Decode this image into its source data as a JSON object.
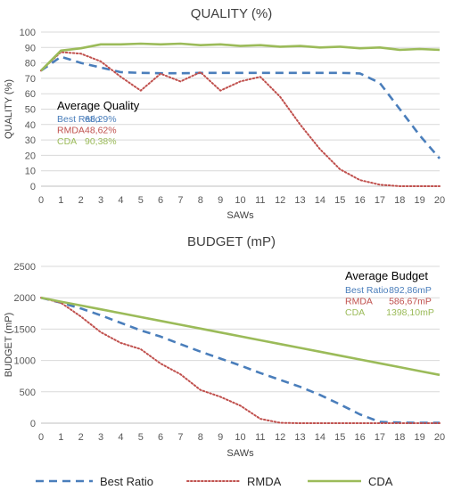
{
  "colors": {
    "best_ratio": "#4a7ebb",
    "rmda": "#c0504d",
    "cda": "#9bbb59"
  },
  "legend": {
    "entries": [
      {
        "name": "Best Ratio",
        "color": "#4a7ebb",
        "style": "dashed"
      },
      {
        "name": "RMDA",
        "color": "#c0504d",
        "style": "dotted"
      },
      {
        "name": "CDA",
        "color": "#9bbb59",
        "style": "solid"
      }
    ]
  },
  "chart_data": [
    {
      "type": "line",
      "title": "QUALITY (%)",
      "xlabel": "SAWs",
      "ylabel": "QUALITY (%)",
      "x": [
        0,
        1,
        2,
        3,
        4,
        5,
        6,
        7,
        8,
        9,
        10,
        11,
        12,
        13,
        14,
        15,
        16,
        17,
        18,
        19,
        20
      ],
      "xlim": [
        0,
        20
      ],
      "ylim": [
        0,
        100
      ],
      "yticks": [
        0,
        10,
        20,
        30,
        40,
        50,
        60,
        70,
        80,
        90,
        100
      ],
      "grid": true,
      "series": [
        {
          "name": "Best Ratio",
          "values": [
            75,
            84,
            80,
            77,
            74,
            73.5,
            73.3,
            73.3,
            73.5,
            73.5,
            73.5,
            73.5,
            73.5,
            73.5,
            73.5,
            73.5,
            73.2,
            67,
            50,
            33,
            18
          ]
        },
        {
          "name": "RMDA",
          "values": [
            75,
            87,
            86,
            81,
            71,
            62,
            73,
            68,
            74,
            62,
            68,
            71,
            58,
            40,
            24,
            11,
            4,
            1,
            0,
            0,
            0
          ]
        },
        {
          "name": "CDA",
          "values": [
            75,
            88,
            89.5,
            92,
            92,
            92.5,
            92,
            92.5,
            91.5,
            92,
            91,
            91.5,
            90.5,
            91,
            90,
            90.5,
            89.5,
            90,
            88.5,
            89,
            88.5
          ]
        }
      ],
      "annotation": {
        "title": "Average Quality",
        "entries": [
          {
            "name": "Best Ratio",
            "value": "68,29%"
          },
          {
            "name": "RMDA",
            "value": "48,62%"
          },
          {
            "name": "CDA",
            "value": "90,38%"
          }
        ]
      }
    },
    {
      "type": "line",
      "title": "BUDGET (mP)",
      "xlabel": "SAWs",
      "ylabel": "BUDGET (mP)",
      "x": [
        0,
        1,
        2,
        3,
        4,
        5,
        6,
        7,
        8,
        9,
        10,
        11,
        12,
        13,
        14,
        15,
        16,
        17,
        18,
        19,
        20
      ],
      "xlim": [
        0,
        20
      ],
      "ylim": [
        0,
        2500
      ],
      "yticks": [
        0,
        500,
        1000,
        1500,
        2000,
        2500
      ],
      "grid": true,
      "series": [
        {
          "name": "Best Ratio",
          "values": [
            2000,
            1920,
            1830,
            1720,
            1600,
            1480,
            1380,
            1260,
            1140,
            1030,
            920,
            800,
            690,
            580,
            450,
            300,
            140,
            20,
            10,
            5,
            5
          ]
        },
        {
          "name": "RMDA",
          "values": [
            2000,
            1920,
            1700,
            1450,
            1280,
            1180,
            950,
            780,
            530,
            420,
            280,
            70,
            5,
            0,
            0,
            0,
            0,
            0,
            0,
            0,
            0
          ]
        },
        {
          "name": "CDA",
          "values": [
            2000,
            1938,
            1877,
            1815,
            1754,
            1692,
            1631,
            1569,
            1508,
            1446,
            1385,
            1323,
            1262,
            1200,
            1139,
            1077,
            1016,
            954,
            893,
            831,
            770
          ]
        }
      ],
      "annotation": {
        "title": "Average Budget",
        "entries": [
          {
            "name": "Best Ratio",
            "value": "892,86mP"
          },
          {
            "name": "RMDA",
            "value": "586,67mP"
          },
          {
            "name": "CDA",
            "value": "1398,10mP"
          }
        ]
      }
    }
  ]
}
